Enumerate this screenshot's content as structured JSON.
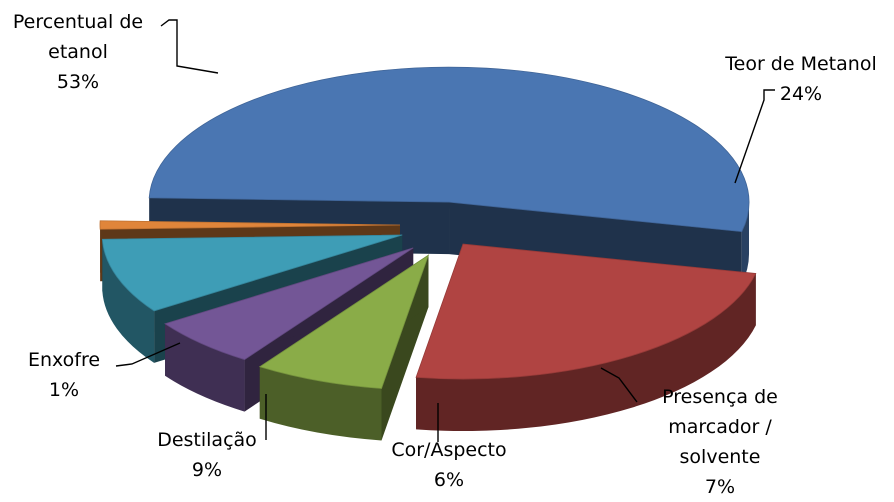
{
  "chart_data": {
    "type": "pie",
    "style": "3d-exploded",
    "slices": [
      {
        "label_lines": [
          "Percentual de",
          "etanol"
        ],
        "value": 53,
        "pct_label": "53%",
        "color": "#4a76b2"
      },
      {
        "label_lines": [
          "Teor de Metanol"
        ],
        "value": 24,
        "pct_label": "24%",
        "color": "#b04442"
      },
      {
        "label_lines": [
          "Presença de",
          "marcador /",
          "solvente"
        ],
        "value": 7,
        "pct_label": "7%",
        "color": "#8aac48"
      },
      {
        "label_lines": [
          "Cor/Aspecto"
        ],
        "value": 6,
        "pct_label": "6%",
        "color": "#735696"
      },
      {
        "label_lines": [
          "Destilação"
        ],
        "value": 9,
        "pct_label": "9%",
        "color": "#3e9db6"
      },
      {
        "label_lines": [
          "Enxofre"
        ],
        "value": 1,
        "pct_label": "1%",
        "color": "#e0853a"
      }
    ]
  }
}
